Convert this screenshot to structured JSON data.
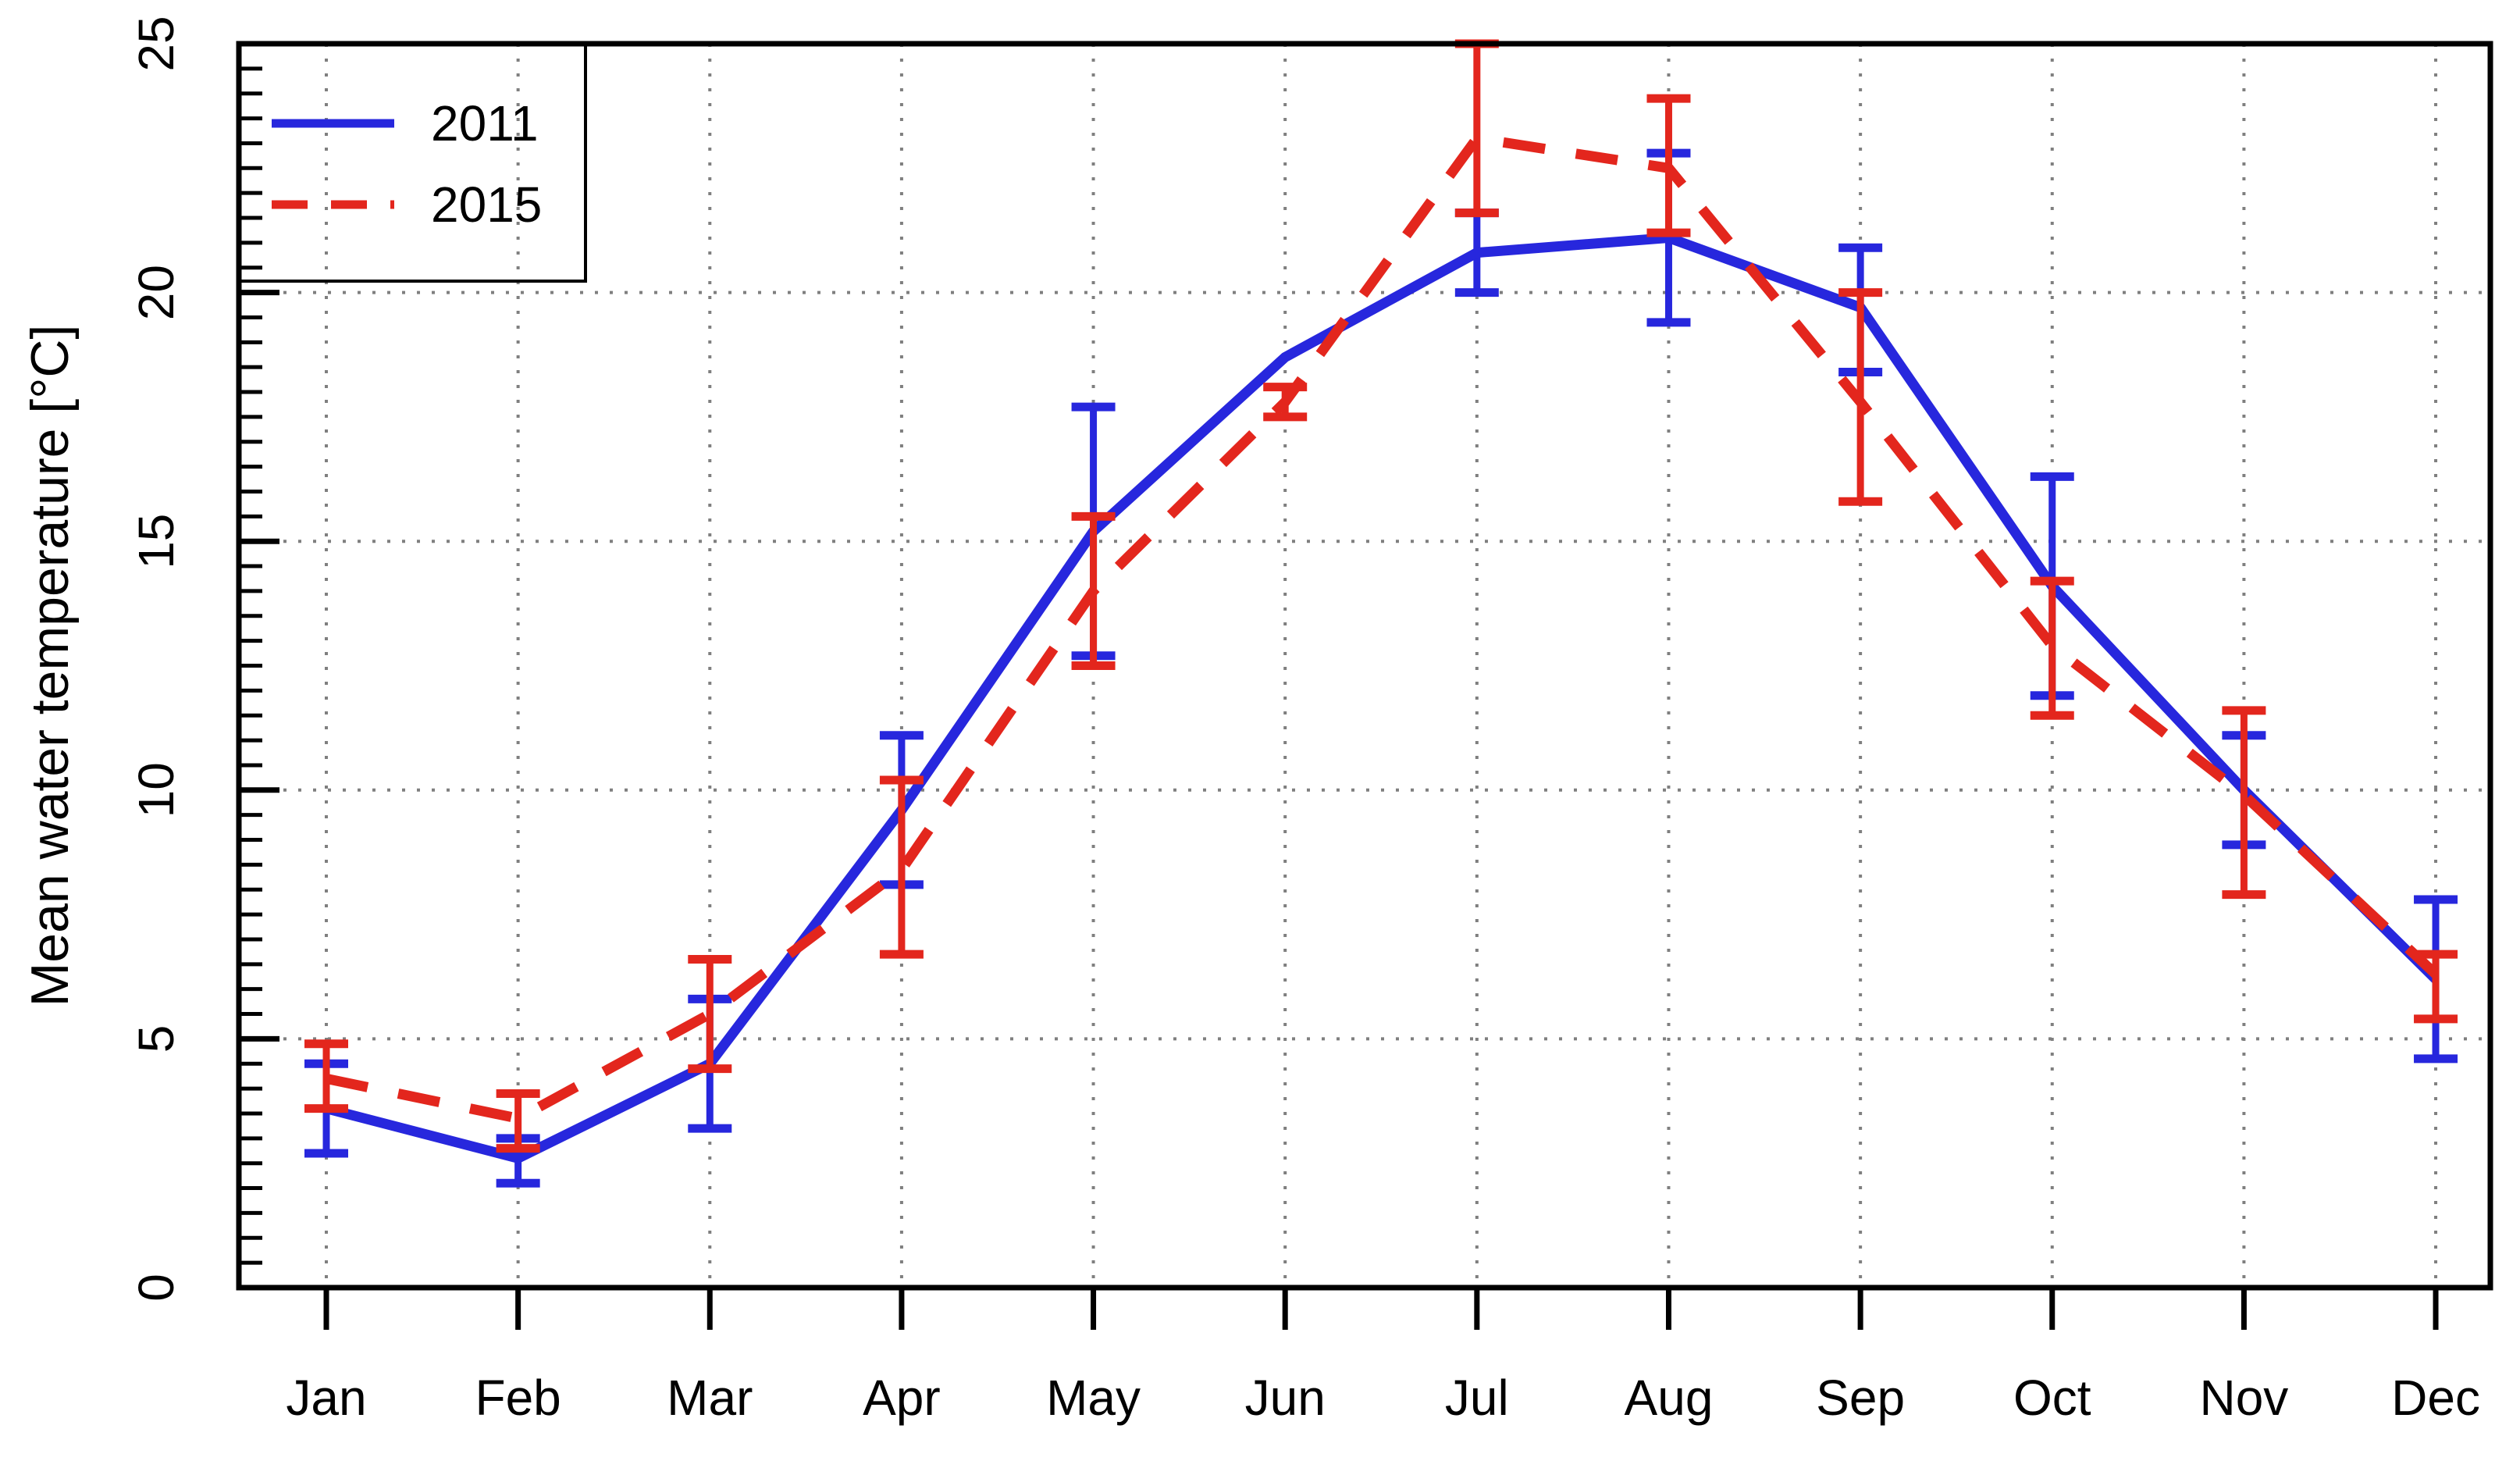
{
  "chart_data": {
    "type": "line",
    "title": "",
    "xlabel": "",
    "ylabel": "Mean water temperature [°C]",
    "categories": [
      "Jan",
      "Feb",
      "Mar",
      "Apr",
      "May",
      "Jun",
      "Jul",
      "Aug",
      "Sep",
      "Oct",
      "Nov",
      "Dec"
    ],
    "ylim": [
      0,
      25
    ],
    "y_major_ticks": [
      0,
      5,
      10,
      15,
      20,
      25
    ],
    "y_minor_step": 0.5,
    "grid": "dotted gray at every month (vertical) and every 5 degrees (horizontal)",
    "legend_position": "top-left",
    "series": [
      {
        "name": "2011",
        "style": "solid",
        "color": "#2727dd",
        "values": [
          3.6,
          2.6,
          4.5,
          9.6,
          15.2,
          18.7,
          20.8,
          21.1,
          19.7,
          14.1,
          10.0,
          6.2
        ],
        "err_low": [
          2.7,
          2.1,
          3.2,
          8.1,
          12.7,
          null,
          20.0,
          19.4,
          18.4,
          11.9,
          8.9,
          4.6
        ],
        "err_high": [
          4.5,
          3.0,
          5.8,
          11.1,
          17.7,
          null,
          21.6,
          22.8,
          20.9,
          16.3,
          11.1,
          7.8
        ]
      },
      {
        "name": "2015",
        "style": "dashed",
        "color": "#e3261d",
        "values": [
          4.2,
          3.4,
          5.5,
          8.4,
          14.0,
          17.8,
          23.1,
          22.5,
          17.8,
          12.9,
          9.9,
          6.3
        ],
        "err_low": [
          3.6,
          2.8,
          4.4,
          6.7,
          12.5,
          17.5,
          21.6,
          21.2,
          15.8,
          11.5,
          7.9,
          5.4
        ],
        "err_high": [
          4.9,
          3.9,
          6.6,
          10.2,
          15.5,
          18.1,
          25.0,
          23.9,
          20.0,
          14.2,
          11.6,
          6.7
        ]
      }
    ],
    "legend": {
      "items": [
        "2011",
        "2015"
      ]
    }
  }
}
